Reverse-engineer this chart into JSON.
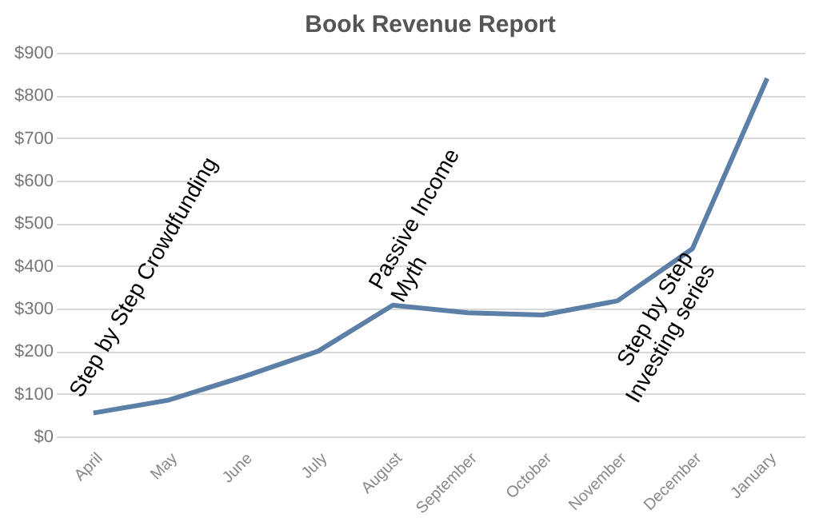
{
  "chart_data": {
    "type": "line",
    "title": "Book Revenue Report",
    "categories": [
      "April",
      "May",
      "June",
      "July",
      "August",
      "September",
      "October",
      "November",
      "December",
      "January"
    ],
    "series": [
      {
        "color": "#5b7fa6",
        "values": [
          55,
          85,
          140,
          200,
          308,
          290,
          285,
          318,
          440,
          840
        ]
      }
    ],
    "ylim": [
      0,
      900
    ],
    "yticks": [
      {
        "value": 0,
        "label": "$0"
      },
      {
        "value": 100,
        "label": "$100"
      },
      {
        "value": 200,
        "label": "$200"
      },
      {
        "value": 300,
        "label": "$300"
      },
      {
        "value": 400,
        "label": "$400"
      },
      {
        "value": 500,
        "label": "$500"
      },
      {
        "value": 600,
        "label": "$600"
      },
      {
        "value": 700,
        "label": "$700"
      },
      {
        "value": 800,
        "label": "$800"
      },
      {
        "value": 900,
        "label": "$900"
      }
    ],
    "grid": "y",
    "legend": false,
    "marker": "none",
    "line_style": "solid",
    "annotations": [
      {
        "text": "Step by Step Crowdfunding",
        "x": "April",
        "y": 55
      },
      {
        "text": "Passive Income\nMyth",
        "x": "August",
        "y": 308
      },
      {
        "text": "Step by Step\nInvesting series",
        "x": "December",
        "y": 440
      }
    ]
  }
}
